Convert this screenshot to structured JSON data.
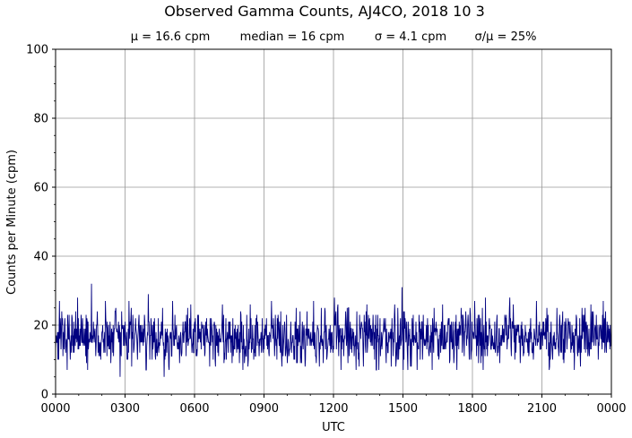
{
  "chart_data": {
    "type": "line",
    "title": "Observed Gamma Counts, AJ4CO, 2018 10 3",
    "subtitle": {
      "mean": "μ = 16.6 cpm",
      "median": "median = 16 cpm",
      "sigma": "σ = 4.1 cpm",
      "ratio": "σ/μ = 25%"
    },
    "xlabel": "UTC",
    "ylabel": "Counts per Minute (cpm)",
    "x_range_hours": [
      0,
      24
    ],
    "ylim": [
      0,
      100
    ],
    "x_tick_labels": [
      "0000",
      "0300",
      "0600",
      "0900",
      "1200",
      "1500",
      "1800",
      "2100",
      "0000"
    ],
    "y_ticks": [
      0,
      20,
      40,
      60,
      80,
      100
    ],
    "grid": true,
    "line_color": "#000080",
    "series": [
      {
        "sampling": "1 value per minute, 00:00-24:00 UTC",
        "mean": 16.6,
        "median": 16,
        "std": 4.1,
        "min": 5,
        "max": 32,
        "notable_points": [
          {
            "time": "0057",
            "value": 28
          },
          {
            "time": "0133",
            "value": 32
          },
          {
            "time": "0247",
            "value": 5
          },
          {
            "time": "0400",
            "value": 29
          },
          {
            "time": "0441",
            "value": 5
          },
          {
            "time": "1202",
            "value": 28
          },
          {
            "time": "1457",
            "value": 31
          },
          {
            "time": "1805",
            "value": 27
          },
          {
            "time": "1833",
            "value": 28
          },
          {
            "time": "1936",
            "value": 28
          },
          {
            "time": "2045",
            "value": 27
          }
        ]
      }
    ]
  }
}
